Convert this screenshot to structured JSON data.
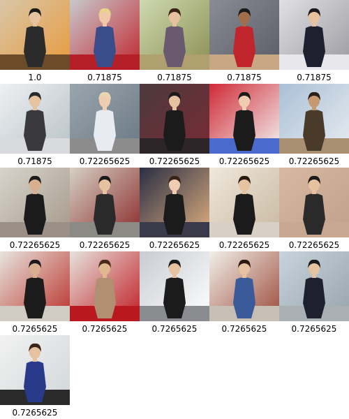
{
  "results": [
    {
      "score": "1.0",
      "thumb": {
        "bg1": "#d9c6a8",
        "bg2": "#e89a3c",
        "floor": "#6b4b2a",
        "cloth": "#2b2b2b",
        "skin": "#e6c2a0",
        "hair": "#1b1b1b"
      }
    },
    {
      "score": "0.71875",
      "thumb": {
        "bg1": "#c8c8cc",
        "bg2": "#c0262e",
        "floor": "#b52028",
        "cloth": "#3a4c8a",
        "skin": "#f0c8a8",
        "hair": "#e8d488"
      }
    },
    {
      "score": "0.71875",
      "thumb": {
        "bg1": "#cfd9b0",
        "bg2": "#8a8f52",
        "floor": "#b0a070",
        "cloth": "#6a5a70",
        "skin": "#e8c2a0",
        "hair": "#3a2418"
      }
    },
    {
      "score": "0.71875",
      "thumb": {
        "bg1": "#8a8c94",
        "bg2": "#5a5c66",
        "floor": "#c8a884",
        "cloth": "#c0242c",
        "skin": "#a06e48",
        "hair": "#1b1b1b"
      }
    },
    {
      "score": "0.71875",
      "thumb": {
        "bg1": "#e0e0e4",
        "bg2": "#9a9aa0",
        "floor": "#e8e8ec",
        "cloth": "#1e2030",
        "skin": "#e6c2a0",
        "hair": "#1b1b1b"
      }
    },
    {
      "score": "0.71875",
      "thumb": {
        "bg1": "#eef0f2",
        "bg2": "#b8c2c8",
        "floor": "#d8dade",
        "cloth": "#3a3a3c",
        "skin": "#e6c2a0",
        "hair": "#2a2a2a"
      }
    },
    {
      "score": "0.72265625",
      "thumb": {
        "bg1": "#9aa6ae",
        "bg2": "#6a7884",
        "floor": "#8c8c8c",
        "cloth": "#e8ecf2",
        "skin": "#f0ccb0",
        "hair": "#e8d8b0"
      }
    },
    {
      "score": "0.72265625",
      "thumb": {
        "bg1": "#4a3a3c",
        "bg2": "#7a2a34",
        "floor": "#2c2426",
        "cloth": "#1b1b1b",
        "skin": "#e6c2a0",
        "hair": "#1b1b1b"
      }
    },
    {
      "score": "0.72265625",
      "thumb": {
        "bg1": "#d02a36",
        "bg2": "#f4f4f4",
        "floor": "#4a6ad0",
        "cloth": "#1b1b1b",
        "skin": "#f0ccb0",
        "hair": "#1b1b1b"
      }
    },
    {
      "score": "0.72265625",
      "thumb": {
        "bg1": "#aac0d6",
        "bg2": "#e8ecf0",
        "floor": "#a89070",
        "cloth": "#4a3a2a",
        "skin": "#c89870",
        "hair": "#2a2018"
      }
    },
    {
      "score": "0.72265625",
      "thumb": {
        "bg1": "#d8d4cc",
        "bg2": "#a4988a",
        "floor": "#9a9088",
        "cloth": "#1b1b1b",
        "skin": "#d8b090",
        "hair": "#1b1b1b"
      }
    },
    {
      "score": "0.72265625",
      "thumb": {
        "bg1": "#d6d0c4",
        "bg2": "#8a2a2a",
        "floor": "#8c8a84",
        "cloth": "#2a2a2a",
        "skin": "#e6c2a0",
        "hair": "#1b1b1b"
      }
    },
    {
      "score": "0.72265625",
      "thumb": {
        "bg1": "#2a2e44",
        "bg2": "#e0b080",
        "floor": "#3a3a4a",
        "cloth": "#1b1b1b",
        "skin": "#f0ccb0",
        "hair": "#3a2418"
      }
    },
    {
      "score": "0.72265625",
      "thumb": {
        "bg1": "#efe8dc",
        "bg2": "#c8b8a0",
        "floor": "#d8d0c4",
        "cloth": "#1b1b1b",
        "skin": "#e6c2a0",
        "hair": "#2a1a10"
      }
    },
    {
      "score": "0.72265625",
      "thumb": {
        "bg1": "#d8b8a0",
        "bg2": "#c0a08a",
        "floor": "#c8a890",
        "cloth": "#2a2a2a",
        "skin": "#e6c2a0",
        "hair": "#1b1b1b"
      }
    },
    {
      "score": "0.7265625",
      "thumb": {
        "bg1": "#e8e4de",
        "bg2": "#b83028",
        "floor": "#d0ccc4",
        "cloth": "#1b1b1b",
        "skin": "#d8b090",
        "hair": "#1b1b1b"
      }
    },
    {
      "score": "0.7265625",
      "thumb": {
        "bg1": "#e6e2dc",
        "bg2": "#c01c24",
        "floor": "#b8181e",
        "cloth": "#b09070",
        "skin": "#e0b890",
        "hair": "#4a2a18"
      }
    },
    {
      "score": "0.7265625",
      "thumb": {
        "bg1": "#c8ccd2",
        "bg2": "#ffffff",
        "floor": "#8a8c90",
        "cloth": "#1b1b1b",
        "skin": "#e6c2a0",
        "hair": "#1b1b1b"
      }
    },
    {
      "score": "0.7265625",
      "thumb": {
        "bg1": "#f2efe8",
        "bg2": "#9a4a3a",
        "floor": "#c8bfb4",
        "cloth": "#3a5a9a",
        "skin": "#e6c2a0",
        "hair": "#2a1a10"
      }
    },
    {
      "score": "0.7265625",
      "thumb": {
        "bg1": "#c8d4dc",
        "bg2": "#98a4ac",
        "floor": "#a8b0b4",
        "cloth": "#1e2030",
        "skin": "#e6c2a0",
        "hair": "#1b1b1b"
      }
    },
    {
      "score": "0.7265625",
      "thumb": {
        "bg1": "#f2f2f2",
        "bg2": "#d0d6d8",
        "floor": "#2a2a2a",
        "cloth": "#2a3a8a",
        "skin": "#e6c2a0",
        "hair": "#3a2418"
      }
    }
  ]
}
